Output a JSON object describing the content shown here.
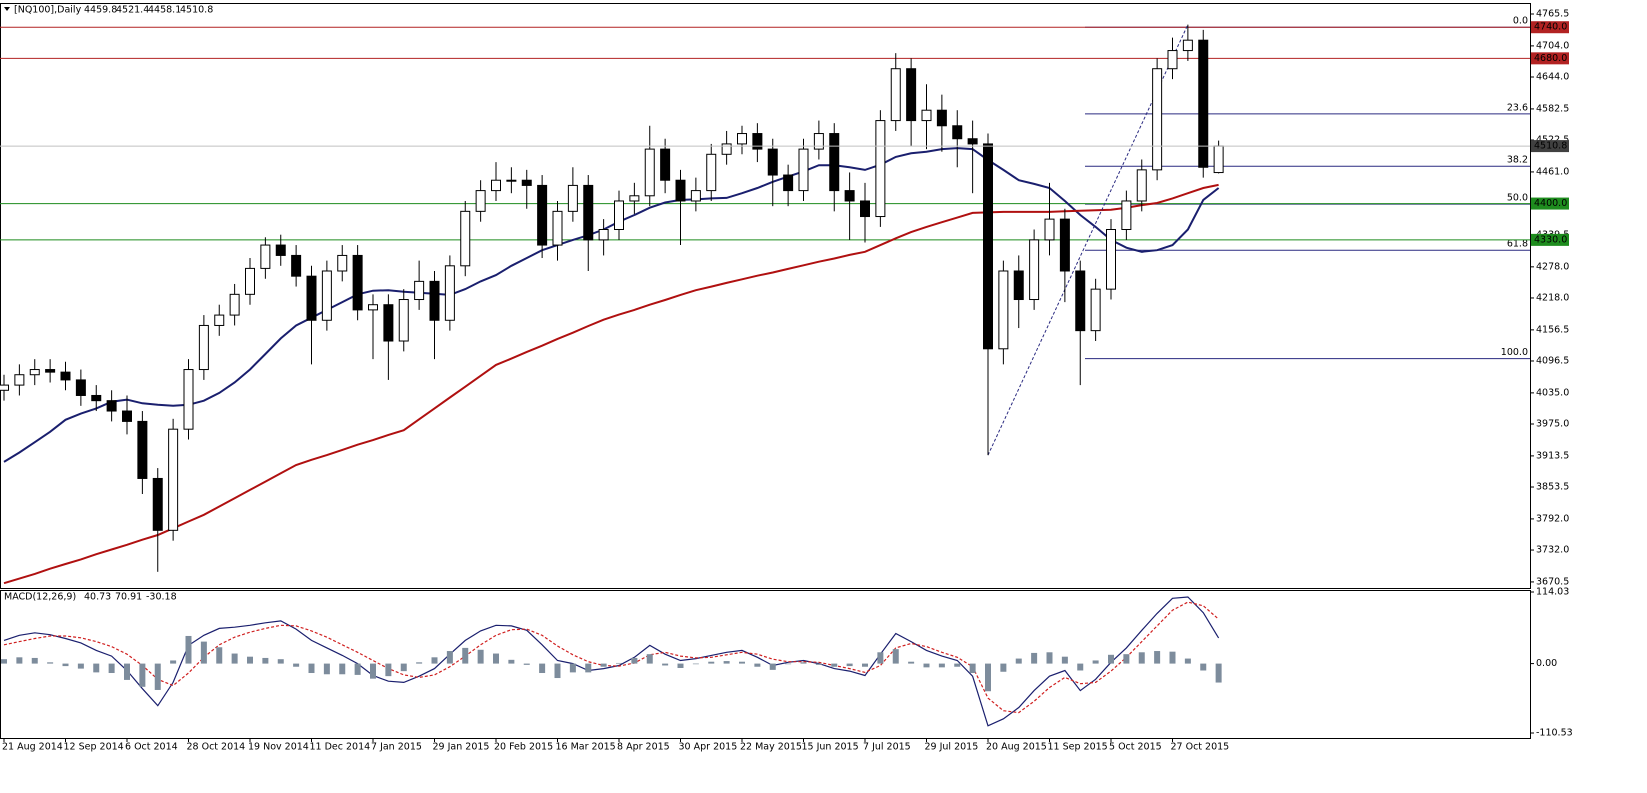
{
  "chart_data": [
    {
      "type": "candlestick",
      "title": "[NQ100],Daily",
      "categories": [
        "21 Aug 2014",
        null,
        null,
        null,
        "12 Sep 2014",
        null,
        null,
        null,
        "6 Oct 2014",
        null,
        null,
        null,
        "28 Oct 2014",
        null,
        null,
        null,
        "19 Nov 2014",
        null,
        null,
        null,
        "11 Dec 2014",
        null,
        null,
        null,
        "7 Jan 2015",
        null,
        null,
        null,
        "29 Jan 2015",
        null,
        null,
        null,
        "20 Feb 2015",
        null,
        null,
        null,
        "16 Mar 2015",
        null,
        null,
        null,
        "8 Apr 2015",
        null,
        null,
        null,
        "30 Apr 2015",
        null,
        null,
        null,
        "22 May 2015",
        null,
        null,
        null,
        "15 Jun 2015",
        null,
        null,
        null,
        "7 Jul 2015",
        null,
        null,
        null,
        "29 Jul 2015",
        null,
        null,
        null,
        "20 Aug 2015",
        null,
        null,
        null,
        "11 Sep 2015",
        null,
        null,
        null,
        "5 Oct 2015",
        null,
        null,
        null,
        "27 Oct 2015",
        null,
        null,
        null
      ],
      "open": [
        4040,
        4050,
        4070,
        4080,
        4075,
        4060,
        4030,
        4020,
        4000,
        3980,
        3870,
        3770,
        3965,
        4080,
        4165,
        4185,
        4225,
        4275,
        4320,
        4300,
        4260,
        4175,
        4270,
        4300,
        4195,
        4205,
        4135,
        4215,
        4250,
        4175,
        4280,
        4385,
        4425,
        4445,
        4445,
        4435,
        4320,
        4385,
        4435,
        4330,
        4350,
        4405,
        4415,
        4505,
        4445,
        4405,
        4425,
        4495,
        4515,
        4535,
        4505,
        4455,
        4425,
        4505,
        4535,
        4425,
        4405,
        4375,
        4560,
        4660,
        4560,
        4580,
        4550,
        4525,
        4515,
        4120,
        4270,
        4215,
        4330,
        4370,
        4270,
        4155,
        4235,
        4350,
        4405,
        4465,
        4660,
        4695,
        4715,
        4459.8
      ],
      "high": [
        4070,
        4090,
        4100,
        4100,
        4095,
        4080,
        4050,
        4040,
        4030,
        4000,
        3890,
        3985,
        4100,
        4185,
        4205,
        4245,
        4295,
        4335,
        4340,
        4320,
        4280,
        4290,
        4320,
        4320,
        4225,
        4225,
        4235,
        4290,
        4270,
        4300,
        4405,
        4445,
        4480,
        4470,
        4465,
        4455,
        4405,
        4470,
        4455,
        4370,
        4425,
        4440,
        4550,
        4525,
        4465,
        4450,
        4515,
        4540,
        4550,
        4555,
        4525,
        4475,
        4525,
        4560,
        4555,
        4460,
        4440,
        4580,
        4690,
        4680,
        4630,
        4610,
        4580,
        4560,
        4535,
        4290,
        4300,
        4350,
        4440,
        4390,
        4290,
        4255,
        4370,
        4425,
        4485,
        4680,
        4720,
        4745,
        4735,
        4521.4
      ],
      "low": [
        4020,
        4030,
        4050,
        4055,
        4040,
        4010,
        4000,
        3980,
        3955,
        3840,
        3690,
        3750,
        3945,
        4060,
        4145,
        4165,
        4205,
        4255,
        4280,
        4240,
        4090,
        4155,
        4250,
        4175,
        4100,
        4060,
        4115,
        4195,
        4100,
        4155,
        4260,
        4365,
        4405,
        4420,
        4390,
        4295,
        4290,
        4365,
        4270,
        4300,
        4330,
        4380,
        4395,
        4420,
        4320,
        4385,
        4405,
        4475,
        4495,
        4480,
        4395,
        4395,
        4405,
        4485,
        4385,
        4330,
        4325,
        4355,
        4540,
        4510,
        4505,
        4500,
        4470,
        4420,
        3915,
        4090,
        4160,
        4195,
        4300,
        4210,
        4050,
        4135,
        4215,
        4330,
        4385,
        4445,
        4640,
        4675,
        4450,
        4458.1
      ],
      "close": [
        4050,
        4070,
        4080,
        4075,
        4060,
        4030,
        4020,
        4000,
        3980,
        3870,
        3770,
        3965,
        4080,
        4165,
        4185,
        4225,
        4275,
        4320,
        4300,
        4260,
        4175,
        4270,
        4300,
        4195,
        4205,
        4135,
        4215,
        4250,
        4175,
        4280,
        4385,
        4425,
        4445,
        4445,
        4435,
        4320,
        4385,
        4435,
        4330,
        4350,
        4405,
        4415,
        4505,
        4445,
        4405,
        4425,
        4495,
        4515,
        4535,
        4505,
        4455,
        4425,
        4505,
        4535,
        4425,
        4405,
        4375,
        4560,
        4660,
        4560,
        4580,
        4550,
        4525,
        4515,
        4120,
        4270,
        4215,
        4330,
        4370,
        4270,
        4155,
        4235,
        4350,
        4405,
        4465,
        4660,
        4695,
        4715,
        4470,
        4510.8
      ],
      "series": [
        {
          "color": "#1a1f6e",
          "values": [
            3902,
            3920,
            3940,
            3960,
            3983,
            3995,
            4005,
            4018,
            4022,
            4015,
            4012,
            4010,
            4012,
            4020,
            4035,
            4055,
            4080,
            4110,
            4140,
            4165,
            4180,
            4195,
            4210,
            4225,
            4232,
            4233,
            4230,
            4228,
            4226,
            4224,
            4235,
            4250,
            4262,
            4280,
            4295,
            4310,
            4320,
            4330,
            4339,
            4350,
            4365,
            4378,
            4392,
            4402,
            4407,
            4408,
            4410,
            4411,
            4420,
            4430,
            4442,
            4452,
            4462,
            4474,
            4474,
            4470,
            4465,
            4475,
            4490,
            4497,
            4500,
            4505,
            4507,
            4505,
            4484,
            4465,
            4445,
            4438,
            4430,
            4405,
            4378,
            4355,
            4330,
            4315,
            4307,
            4310,
            4320,
            4350,
            4407,
            4430
          ]
        },
        {
          "color": "#b01010",
          "values": [
            3668,
            3677,
            3686,
            3696,
            3705,
            3714,
            3724,
            3733,
            3742,
            3752,
            3761,
            3774,
            3787,
            3800,
            3816,
            3832,
            3848,
            3864,
            3880,
            3896,
            3906,
            3915,
            3925,
            3935,
            3944,
            3954,
            3963,
            3984,
            4005,
            4026,
            4047,
            4068,
            4089,
            4101,
            4114,
            4126,
            4139,
            4151,
            4164,
            4176,
            4186,
            4195,
            4205,
            4214,
            4224,
            4233,
            4240,
            4247,
            4254,
            4261,
            4267,
            4274,
            4281,
            4288,
            4294,
            4301,
            4307,
            4320,
            4333,
            4345,
            4355,
            4364,
            4373,
            4382,
            4383,
            4384,
            4384,
            4384,
            4384,
            4385,
            4386,
            4387,
            4388,
            4392,
            4397,
            4401,
            4410,
            4420,
            4430,
            4436
          ]
        }
      ],
      "levels": [
        {
          "value": 4740,
          "label": "4740.0",
          "color": "#b22222"
        },
        {
          "value": 4680,
          "label": "4680.0",
          "color": "#b22222"
        },
        {
          "value": 4400,
          "label": "4400.0",
          "color": "#1e8c1e"
        },
        {
          "value": 4330,
          "label": "4330.0",
          "color": "#1e8c1e"
        }
      ],
      "fib": [
        {
          "value": 4740,
          "label": "0.0"
        },
        {
          "value": 4573,
          "label": "23.6"
        },
        {
          "value": 4472,
          "label": "38.2"
        },
        {
          "value": 4399,
          "label": "50.0"
        },
        {
          "value": 4310,
          "label": "61.8"
        },
        {
          "value": 4101,
          "label": "100.0"
        }
      ],
      "fib_color": "#2a2a80",
      "ylim": [
        3658.8,
        4786.7
      ],
      "yticks": [
        4765.5,
        {
          "value": 4704,
          "label": "4704.0"
        },
        {
          "value": 4644,
          "label": "4644.0"
        },
        4582.5,
        4522.5,
        {
          "value": 4461,
          "label": "4461.0"
        },
        4339.5,
        {
          "value": 4278,
          "label": "4278.0"
        },
        {
          "value": 4218,
          "label": "4218.0"
        },
        4156.5,
        4096.5,
        {
          "value": 4035,
          "label": "4035.0"
        },
        {
          "value": 3975,
          "label": "3975.0"
        },
        3913.5,
        3853.5,
        {
          "value": 3792,
          "label": "3792.0"
        },
        {
          "value": 3732,
          "label": "3732.0"
        },
        3670.5
      ]
    },
    {
      "type": "macd",
      "title": "MACD(12,26,9)",
      "series": [
        {
          "type": "line",
          "color": "#1a1f6e",
          "values": [
            37,
            45,
            49,
            46,
            40,
            33,
            21,
            12,
            -11,
            -40,
            -67,
            -30,
            29,
            45,
            56,
            58,
            61,
            65,
            68,
            55,
            37,
            25,
            13,
            0,
            -19,
            -28,
            -30,
            -20,
            -8,
            15,
            37,
            52,
            61,
            60,
            53,
            30,
            5,
            0,
            -11,
            -8,
            -3,
            10,
            29,
            15,
            5,
            8,
            13,
            18,
            21,
            10,
            -3,
            2,
            5,
            0,
            -8,
            -12,
            -19,
            15,
            48,
            35,
            21,
            12,
            5,
            -20,
            -99,
            -88,
            -70,
            -43,
            -20,
            -11,
            -43,
            -25,
            2,
            25,
            53,
            80,
            104,
            106,
            81,
            40.73
          ]
        },
        {
          "type": "dashed",
          "color": "#d02020",
          "values": [
            30,
            35,
            40,
            44,
            44,
            41,
            35,
            27,
            15,
            -3,
            -25,
            -35,
            -15,
            10,
            30,
            42,
            50,
            56,
            61,
            60,
            52,
            42,
            30,
            18,
            5,
            -8,
            -18,
            -22,
            -18,
            -5,
            12,
            30,
            45,
            54,
            55,
            45,
            28,
            14,
            3,
            -3,
            -4,
            1,
            14,
            18,
            12,
            9,
            10,
            14,
            18,
            15,
            7,
            3,
            3,
            2,
            -3,
            -8,
            -14,
            -3,
            25,
            32,
            27,
            18,
            10,
            -5,
            -55,
            -75,
            -78,
            -60,
            -38,
            -22,
            -32,
            -30,
            -12,
            10,
            35,
            60,
            85,
            98,
            92,
            70.91
          ]
        },
        {
          "type": "histogram",
          "color": "#7d8c9c",
          "values": [
            7,
            10,
            9,
            2,
            -4,
            -8,
            -14,
            -15,
            -26,
            -37,
            -42,
            5,
            44,
            35,
            26,
            16,
            11,
            9,
            7,
            -5,
            -15,
            -17,
            -17,
            -18,
            -24,
            -20,
            -12,
            2,
            10,
            20,
            25,
            22,
            16,
            6,
            -2,
            -15,
            -23,
            -14,
            -14,
            -5,
            1,
            9,
            15,
            -3,
            -7,
            -1,
            3,
            4,
            3,
            -5,
            -10,
            -1,
            2,
            -2,
            -5,
            -4,
            -5,
            18,
            23,
            3,
            -6,
            -6,
            -5,
            -15,
            -44,
            -13,
            8,
            17,
            18,
            11,
            -11,
            5,
            14,
            15,
            18,
            20,
            19,
            8,
            -11,
            -30.18
          ]
        }
      ],
      "ylim": [
        -118.5,
        117.2
      ],
      "yticks": [
        114.03,
        {
          "value": 0,
          "label": "0.00"
        },
        -110.53
      ]
    }
  ]
}
